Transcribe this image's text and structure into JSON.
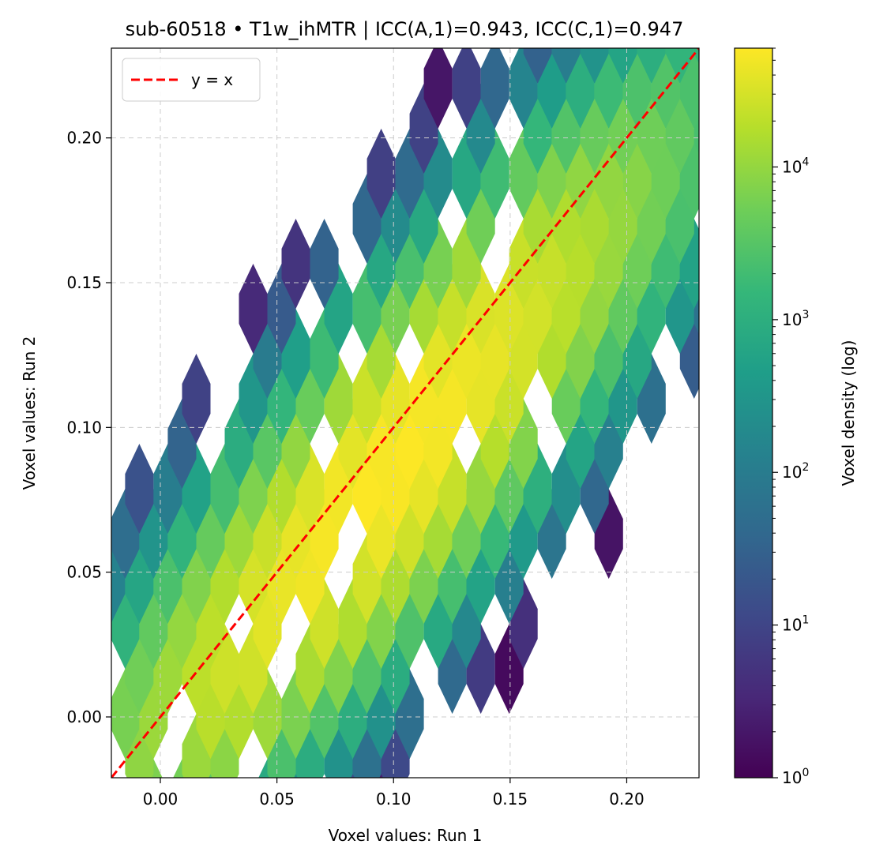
{
  "chart_data": {
    "type": "heatmap",
    "subtype": "hexbin",
    "title": "sub-60518 • T1w_ihMTR | ICC(A,1)=0.943, ICC(C,1)=0.947",
    "xlabel": "Voxel values: Run 1",
    "ylabel": "Voxel values: Run 2",
    "xlim": [
      -0.021,
      0.231
    ],
    "ylim": [
      -0.021,
      0.231
    ],
    "xticks": [
      0.0,
      0.05,
      0.1,
      0.15,
      0.2
    ],
    "yticks": [
      0.0,
      0.05,
      0.1,
      0.15,
      0.2
    ],
    "xtick_labels": [
      "0.00",
      "0.05",
      "0.10",
      "0.15",
      "0.20"
    ],
    "ytick_labels": [
      "0.00",
      "0.05",
      "0.10",
      "0.15",
      "0.20"
    ],
    "grid": true,
    "legend": {
      "position": "upper-left",
      "entries": [
        {
          "label": "y = x",
          "style": "dashed",
          "color": "#ff0000"
        }
      ]
    },
    "reference_line": {
      "label": "y = x",
      "from": [
        -0.021,
        -0.021
      ],
      "to": [
        0.231,
        0.231
      ],
      "color": "#ff0000",
      "style": "dashed"
    },
    "colorbar": {
      "label": "Voxel density (log)",
      "scale": "log",
      "colormap": "viridis",
      "vmin": 1,
      "vmax": 60000,
      "ticks": [
        {
          "value": 1,
          "base": "10",
          "exp": "0"
        },
        {
          "value": 10,
          "base": "10",
          "exp": "1"
        },
        {
          "value": 100,
          "base": "10",
          "exp": "2"
        },
        {
          "value": 1000,
          "base": "10",
          "exp": "3"
        },
        {
          "value": 10000,
          "base": "10",
          "exp": "4"
        }
      ]
    },
    "hex_grid": {
      "x_step": 0.0122,
      "y_step": 0.0311,
      "x0": -0.0212,
      "y0": -0.0145
    },
    "density_model": {
      "note": "approximate counts per hexagon, read from the colormap",
      "peak_count": 60000,
      "diagonal_spread_sd": 0.018,
      "x_offset": 0.012,
      "coverage_max_perp": 0.09
    }
  },
  "colors": {
    "viridis": [
      "#440154",
      "#482878",
      "#3e4989",
      "#31688e",
      "#26828e",
      "#1f9e89",
      "#35b779",
      "#6ece58",
      "#b5de2b",
      "#fde725"
    ],
    "grid": "#cccccc",
    "axis": "#000000",
    "reference_line": "#ff0000"
  }
}
